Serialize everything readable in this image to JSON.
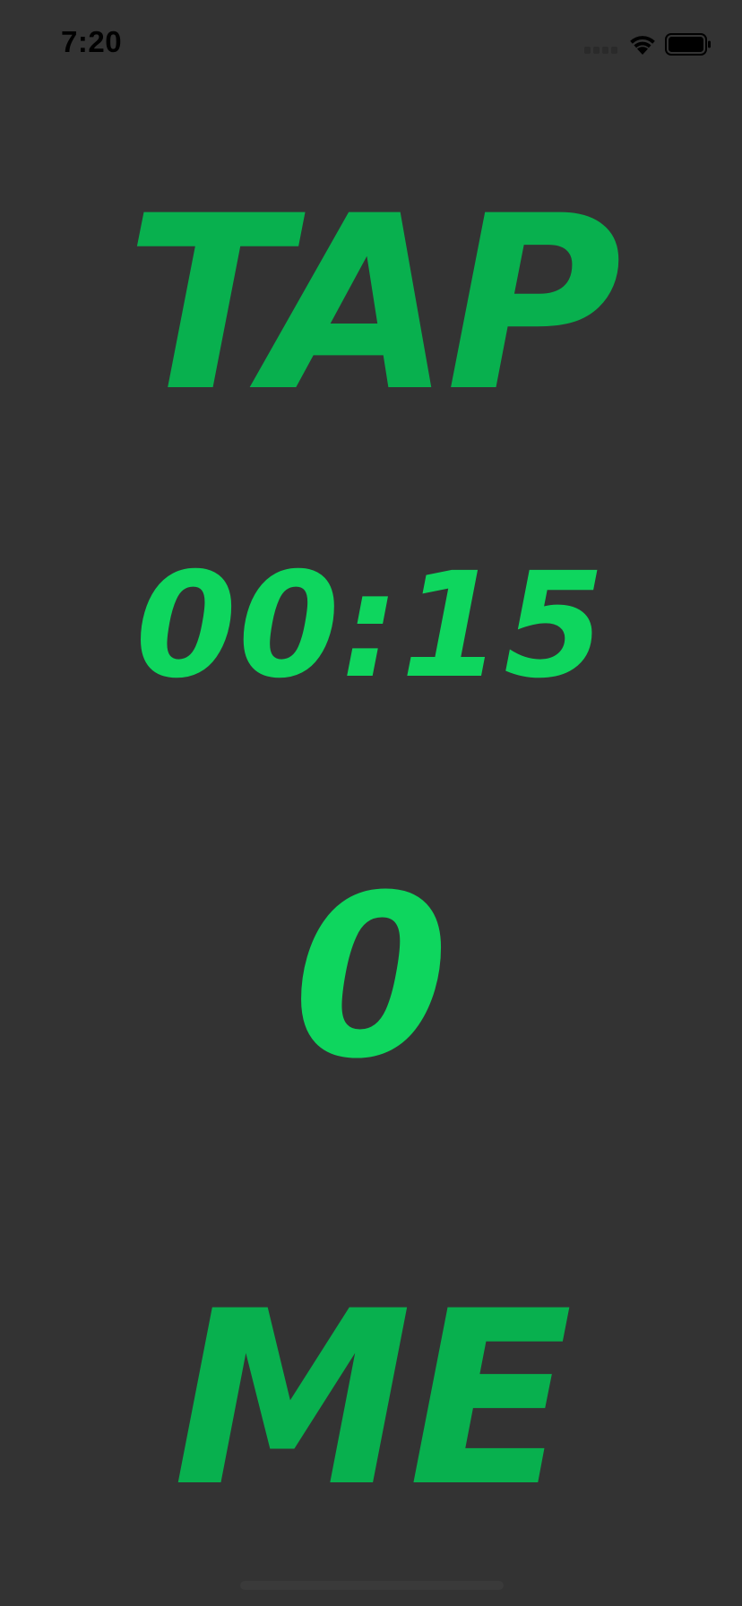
{
  "status_bar": {
    "time": "7:20",
    "signal_icon": "cellular-signal-icon",
    "wifi_icon": "wifi-icon",
    "battery_icon": "battery-icon"
  },
  "game": {
    "tap_label": "TAP",
    "timer": "00:15",
    "score": "0",
    "me_label": "ME"
  },
  "colors": {
    "background": "#333333",
    "label_green": "#08b04e",
    "value_green": "#0ed65e",
    "status_text": "#000000"
  }
}
